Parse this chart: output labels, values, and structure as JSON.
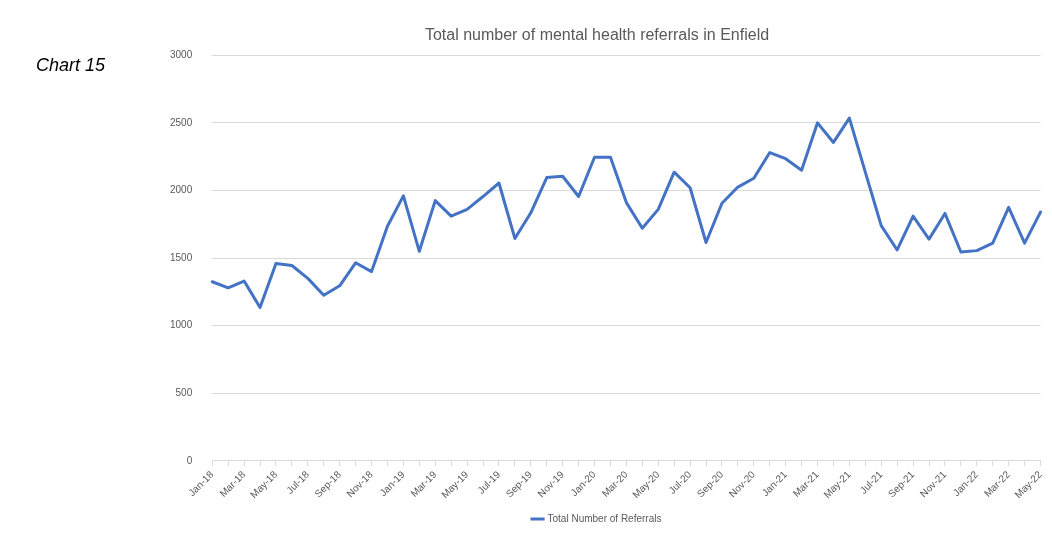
{
  "chart_data": {
    "type": "line",
    "title": "Total number of mental health referrals in Enfield",
    "annotations": [
      "Chart 15"
    ],
    "categories": [
      "Jan-18",
      null,
      "Mar-18",
      null,
      "May-18",
      null,
      "Jul-18",
      null,
      "Sep-18",
      null,
      "Nov-18",
      null,
      "Jan-19",
      null,
      "Mar-19",
      null,
      "May-19",
      null,
      "Jul-19",
      null,
      "Sep-19",
      null,
      "Nov-19",
      null,
      "Jan-20",
      null,
      "Mar-20",
      null,
      "May-20",
      null,
      "Jul-20",
      null,
      "Sep-20",
      null,
      "Nov-20",
      null,
      "Jan-21",
      null,
      "Mar-21",
      null,
      "May-21",
      null,
      "Jul-21",
      null,
      "Sep-21",
      null,
      "Nov-21",
      null,
      "Jan-22",
      null,
      "Mar-22",
      null,
      "May-22"
    ],
    "series": [
      {
        "name": "Total Number of Referrals",
        "color": "#4472c4",
        "values": [
          1325,
          1280,
          1330,
          1135,
          1460,
          1445,
          1350,
          1225,
          1295,
          1465,
          1400,
          1735,
          1960,
          1550,
          1925,
          1810,
          1860,
          1955,
          2055,
          1645,
          1835,
          2095,
          2105,
          1955,
          2245,
          2245,
          1910,
          1720,
          1860,
          2135,
          2020,
          1615,
          1905,
          2025,
          2090,
          2280,
          2235,
          2150,
          2500,
          2355,
          2535,
          2135,
          1740,
          1560,
          1810,
          1640,
          1830,
          1545,
          1555,
          1610,
          1875,
          1610,
          1840
        ]
      }
    ],
    "ylim": [
      0,
      3000
    ],
    "yticks": [
      0,
      500,
      1000,
      1500,
      2000,
      2500,
      3000
    ],
    "grid": "y",
    "legend": "bottom",
    "marker": "none",
    "line_style": "solid"
  }
}
